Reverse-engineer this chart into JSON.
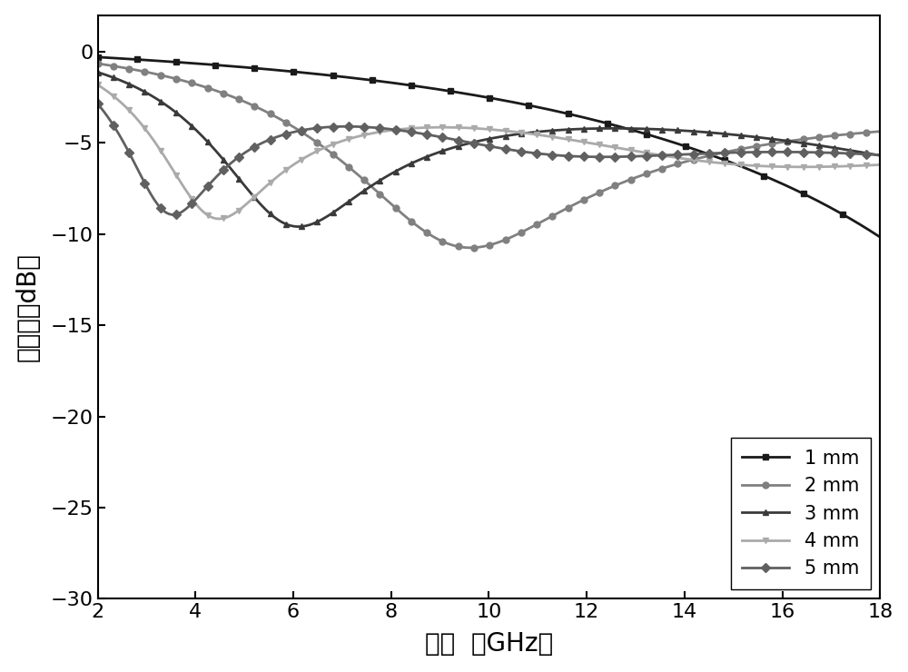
{
  "xlabel": "频率  （GHz）",
  "ylabel": "反射率（dB）",
  "xlim": [
    2,
    18
  ],
  "ylim": [
    -30,
    2
  ],
  "xticks": [
    2,
    4,
    6,
    8,
    10,
    12,
    14,
    16,
    18
  ],
  "yticks": [
    0,
    -5,
    -10,
    -15,
    -20,
    -25,
    -30
  ],
  "series": [
    {
      "label": "1 mm",
      "color": "#1a1a1a",
      "marker": "s",
      "d": 1.0,
      "markersize": 5,
      "markevery": 25
    },
    {
      "label": "2 mm",
      "color": "#808080",
      "marker": "o",
      "d": 2.0,
      "markersize": 5,
      "markevery": 10
    },
    {
      "label": "3 mm",
      "color": "#3a3a3a",
      "marker": "^",
      "d": 3.0,
      "markersize": 5,
      "markevery": 10
    },
    {
      "label": "4 mm",
      "color": "#aaaaaa",
      "marker": "v",
      "d": 4.0,
      "markersize": 5,
      "markevery": 10
    },
    {
      "label": "5 mm",
      "color": "#606060",
      "marker": "D",
      "d": 5.0,
      "markersize": 5,
      "markevery": 10
    }
  ],
  "background_color": "#ffffff",
  "freq_min": 2,
  "freq_max": 18,
  "freq_points": 500
}
